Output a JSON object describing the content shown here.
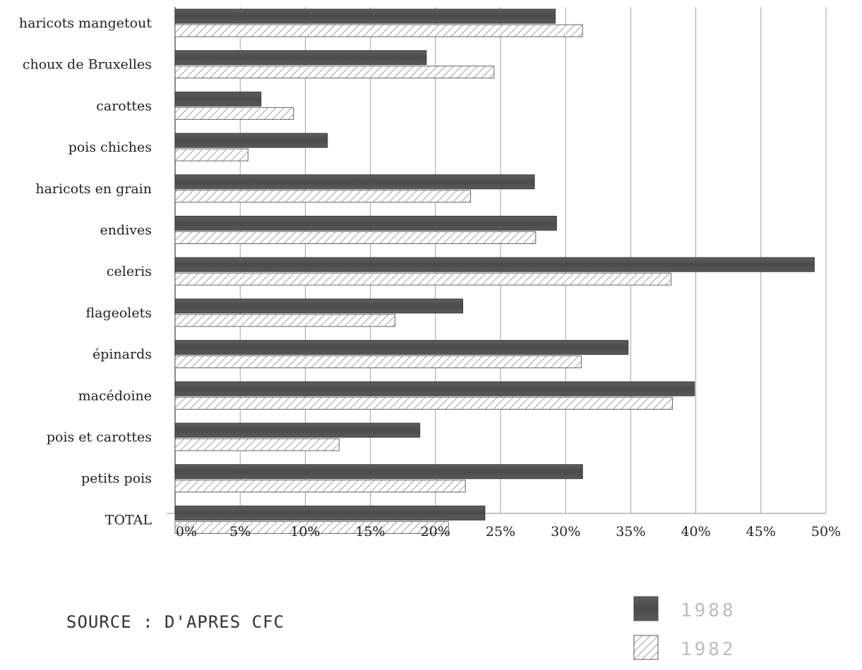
{
  "chart_data": {
    "type": "bar",
    "orientation": "horizontal",
    "categories": [
      "haricots mangetout",
      "choux de Bruxelles",
      "carottes",
      "pois chiches",
      "haricots en grain",
      "endives",
      "celeris",
      "flageolets",
      "épinards",
      "macédoine",
      "pois et carottes",
      "petits pois",
      "TOTAL"
    ],
    "series": [
      {
        "name": "1988",
        "color": "#555555",
        "pattern": "solid-dark",
        "values": [
          29.2,
          19.3,
          6.6,
          11.7,
          27.6,
          29.3,
          49.1,
          22.1,
          34.8,
          39.9,
          18.8,
          31.3,
          23.8
        ]
      },
      {
        "name": "1982",
        "color": "#ffffff",
        "pattern": "diagonal-hatch",
        "values": [
          31.3,
          24.5,
          9.1,
          5.6,
          22.7,
          27.7,
          38.1,
          16.9,
          31.2,
          38.2,
          12.6,
          22.3,
          21.0
        ]
      }
    ],
    "x_ticks": [
      "0%",
      "5%",
      "10%",
      "15%",
      "20%",
      "25%",
      "30%",
      "35%",
      "40%",
      "45%",
      "50%"
    ],
    "xlim": [
      0,
      50
    ],
    "grid": "vertical",
    "legend_placement": "bottom-right"
  },
  "source_note": "SOURCE : D'APRES CFC",
  "legend": {
    "item_1988": "1988",
    "item_1982": "1982"
  }
}
